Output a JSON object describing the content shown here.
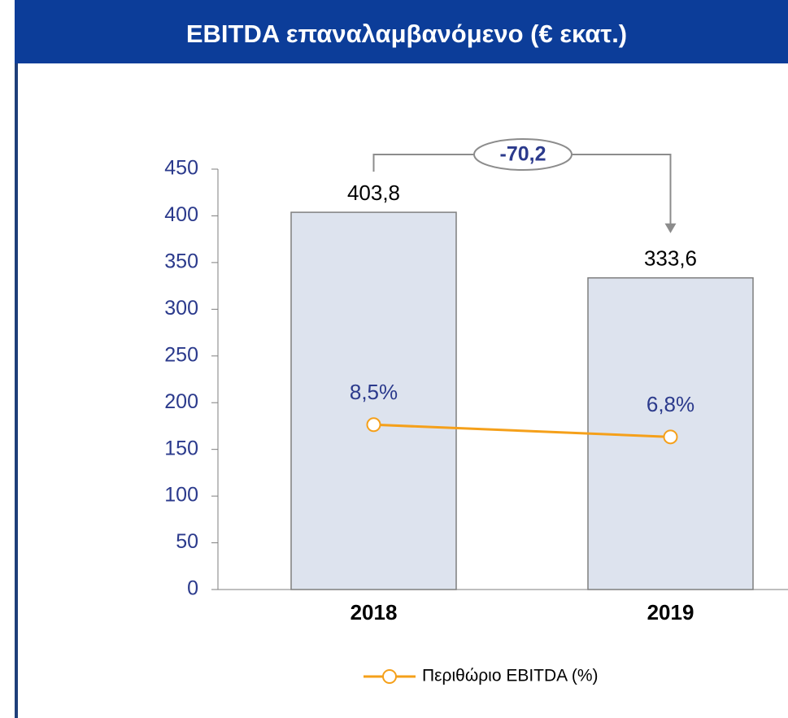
{
  "chart_data": {
    "type": "bar",
    "title": "EBITDA επαναλαμβανόμενο (€ εκατ.)",
    "categories": [
      "2018",
      "2019"
    ],
    "series": [
      {
        "type": "bar",
        "color": "#dde3ee",
        "values": [
          403.8,
          333.6
        ],
        "value_labels": [
          "403,8",
          "333,6"
        ]
      },
      {
        "type": "line",
        "name": "Περιθώριο EBITDA (%)",
        "color": "#f5a01a",
        "axis": "y2",
        "values": [
          8.5,
          6.8
        ],
        "value_labels": [
          "8,5%",
          "6,8%"
        ]
      }
    ],
    "annotation": "-70,2",
    "ylim": [
      0,
      450
    ],
    "yticks": [
      0,
      50,
      100,
      150,
      200,
      250,
      300,
      350,
      400,
      450
    ],
    "y2lim": [
      -14.4,
      44
    ],
    "legend": "bottom"
  }
}
